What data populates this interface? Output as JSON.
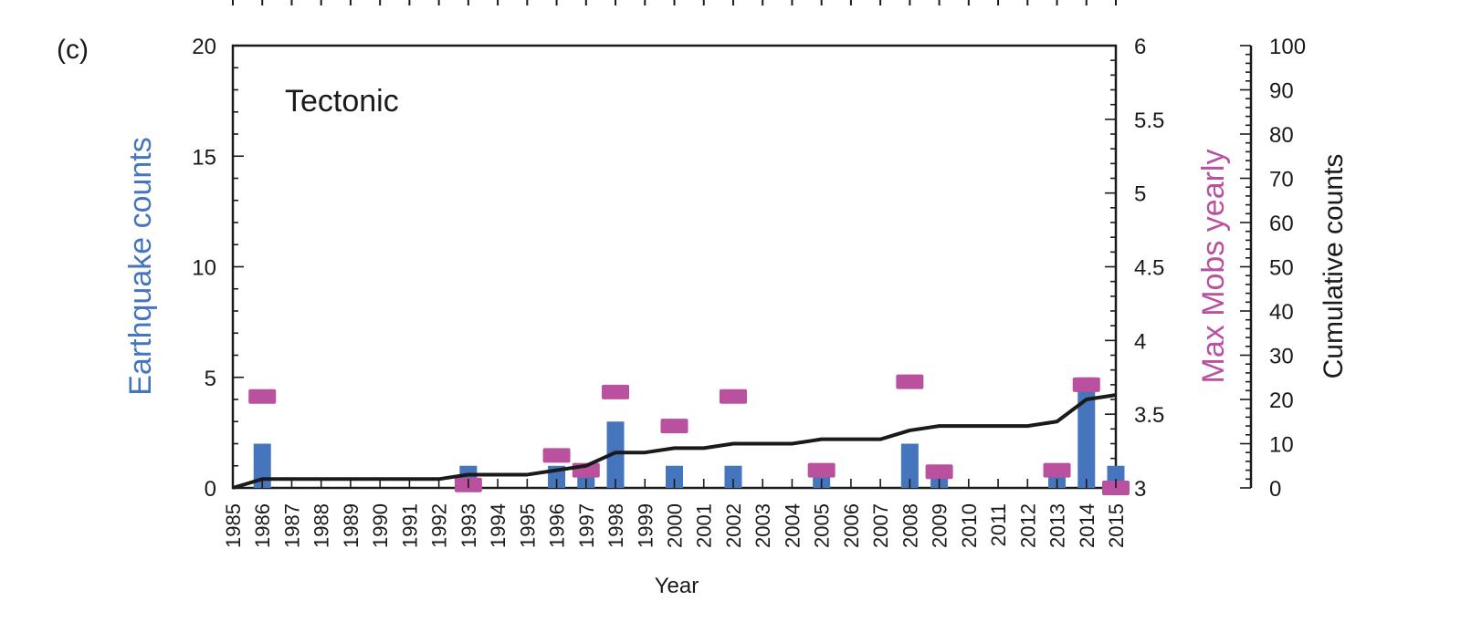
{
  "panel_label": "(c)",
  "chart_data": {
    "type": "bar",
    "title": "Tectonic",
    "xlabel": "Year",
    "ylabel_left": "Earthquake counts",
    "ylabel_mid": "Max Mobs yearly",
    "ylabel_right": "Cumulative counts",
    "x_range": [
      1985,
      2015
    ],
    "years": [
      1985,
      1986,
      1987,
      1988,
      1989,
      1990,
      1991,
      1992,
      1993,
      1994,
      1995,
      1996,
      1997,
      1998,
      1999,
      2000,
      2001,
      2002,
      2003,
      2004,
      2005,
      2006,
      2007,
      2008,
      2009,
      2010,
      2011,
      2012,
      2013,
      2014,
      2015
    ],
    "y_left_range": [
      0,
      20
    ],
    "y_left_ticks": [
      0,
      5,
      10,
      15,
      20
    ],
    "y_mid_range": [
      3,
      6
    ],
    "y_mid_ticks": [
      "3",
      "3.5",
      "4",
      "4.5",
      "5",
      "5.5",
      "6"
    ],
    "y_right_range": [
      0,
      100
    ],
    "y_right_ticks": [
      0,
      10,
      20,
      30,
      40,
      50,
      60,
      70,
      80,
      90,
      100
    ],
    "series": [
      {
        "name": "Earthquake counts",
        "kind": "bar",
        "axis": "left",
        "color": "#4576bd",
        "values": [
          0,
          2,
          0,
          0,
          0,
          0,
          0,
          0,
          1,
          0,
          0,
          1,
          1,
          3,
          0,
          1,
          0,
          1,
          0,
          0,
          1,
          0,
          0,
          2,
          1,
          0,
          0,
          0,
          1,
          5,
          1
        ]
      },
      {
        "name": "Max Mobs yearly",
        "kind": "marker",
        "axis": "mid",
        "color": "#b9519f",
        "points": [
          {
            "year": 1986,
            "value": 3.62
          },
          {
            "year": 1993,
            "value": 3.02
          },
          {
            "year": 1996,
            "value": 3.22
          },
          {
            "year": 1997,
            "value": 3.12
          },
          {
            "year": 1998,
            "value": 3.65
          },
          {
            "year": 2000,
            "value": 3.42
          },
          {
            "year": 2002,
            "value": 3.62
          },
          {
            "year": 2005,
            "value": 3.12
          },
          {
            "year": 2008,
            "value": 3.72
          },
          {
            "year": 2009,
            "value": 3.11
          },
          {
            "year": 2013,
            "value": 3.12
          },
          {
            "year": 2014,
            "value": 3.7
          },
          {
            "year": 2015,
            "value": 3.0
          }
        ]
      },
      {
        "name": "Cumulative counts",
        "kind": "line",
        "axis": "right",
        "color": "#1a1a1a",
        "values": [
          0,
          2,
          2,
          2,
          2,
          2,
          2,
          2,
          3,
          3,
          3,
          4,
          5,
          8,
          8,
          9,
          9,
          10,
          10,
          10,
          11,
          11,
          11,
          13,
          14,
          14,
          14,
          14,
          15,
          20,
          21
        ]
      }
    ]
  }
}
